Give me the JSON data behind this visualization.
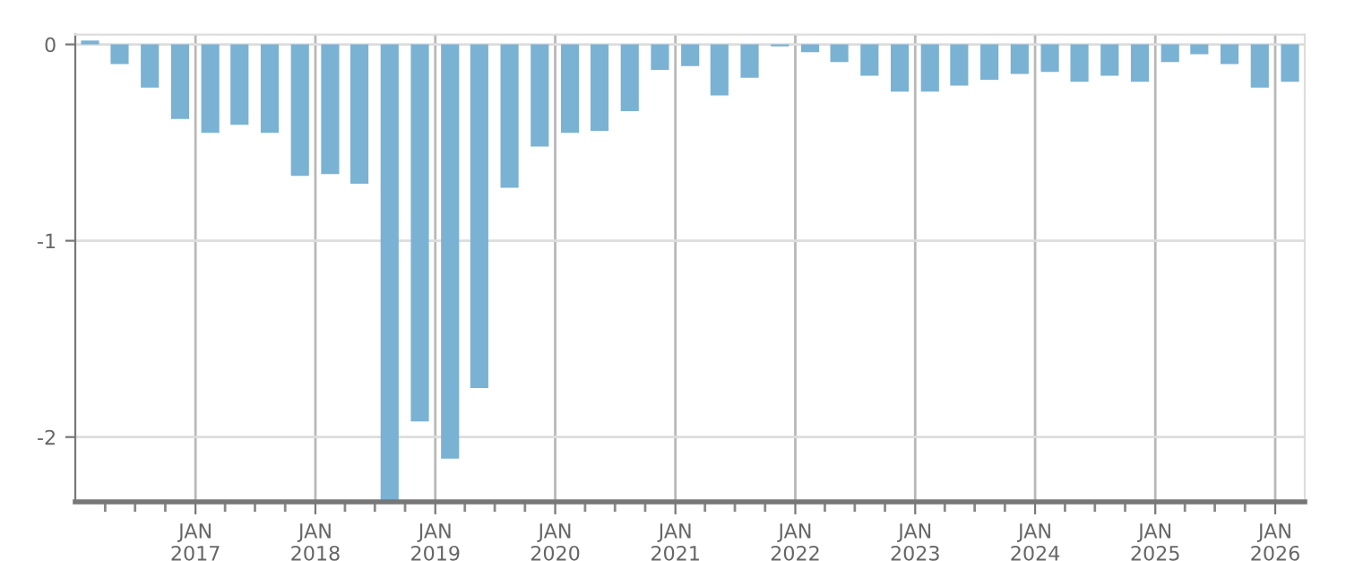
{
  "chart_data": {
    "type": "bar",
    "x": [
      "2016-02-15",
      "2016-05-15",
      "2016-08-15",
      "2016-11-15",
      "2017-02-15",
      "2017-05-15",
      "2017-08-15",
      "2017-11-15",
      "2018-02-15",
      "2018-05-15",
      "2018-08-15",
      "2018-11-15",
      "2019-02-15",
      "2019-05-15",
      "2019-08-15",
      "2019-11-15",
      "2020-02-15",
      "2020-05-15",
      "2020-08-15",
      "2020-11-15",
      "2021-02-15",
      "2021-05-15",
      "2021-08-15",
      "2021-11-15",
      "2022-02-15",
      "2022-05-15",
      "2022-08-15",
      "2022-11-15",
      "2023-02-15",
      "2023-05-15",
      "2023-08-15",
      "2023-11-15",
      "2024-02-15",
      "2024-05-15",
      "2024-08-15",
      "2024-11-15",
      "2025-02-15",
      "2025-05-15",
      "2025-08-15",
      "2025-11-15",
      "2026-02-15"
    ],
    "values": [
      0.02,
      -0.1,
      -0.22,
      -0.38,
      -0.45,
      -0.41,
      -0.45,
      -0.67,
      -0.66,
      -0.71,
      -2.33,
      -1.92,
      -2.11,
      -1.75,
      -0.73,
      -0.52,
      -0.45,
      -0.44,
      -0.34,
      -0.13,
      -0.11,
      -0.26,
      -0.17,
      -0.01,
      -0.04,
      -0.09,
      -0.16,
      -0.24,
      -0.24,
      -0.21,
      -0.18,
      -0.15,
      -0.14,
      -0.19,
      -0.16,
      -0.19,
      -0.09,
      -0.05,
      -0.1,
      -0.22,
      -0.19
    ],
    "color": "#7ab2d4",
    "xlim": [
      "2016-01-01",
      "2026-04-01"
    ],
    "xticks": [
      {
        "value": "2016-04-01",
        "label": null
      },
      {
        "value": "2016-07-01",
        "label": null
      },
      {
        "value": "2016-10-01",
        "label": null
      },
      {
        "value": "2017-01-01",
        "label": "JAN\n2017"
      },
      {
        "value": "2017-04-01",
        "label": null
      },
      {
        "value": "2017-07-01",
        "label": null
      },
      {
        "value": "2017-10-01",
        "label": null
      },
      {
        "value": "2018-01-01",
        "label": "JAN\n2018"
      },
      {
        "value": "2018-04-01",
        "label": null
      },
      {
        "value": "2018-07-01",
        "label": null
      },
      {
        "value": "2018-10-01",
        "label": null
      },
      {
        "value": "2019-01-01",
        "label": "JAN\n2019"
      },
      {
        "value": "2019-04-01",
        "label": null
      },
      {
        "value": "2019-07-01",
        "label": null
      },
      {
        "value": "2019-10-01",
        "label": null
      },
      {
        "value": "2020-01-01",
        "label": "JAN\n2020"
      },
      {
        "value": "2020-04-01",
        "label": null
      },
      {
        "value": "2020-07-01",
        "label": null
      },
      {
        "value": "2020-10-01",
        "label": null
      },
      {
        "value": "2021-01-01",
        "label": "JAN\n2021"
      },
      {
        "value": "2021-04-01",
        "label": null
      },
      {
        "value": "2021-07-01",
        "label": null
      },
      {
        "value": "2021-10-01",
        "label": null
      },
      {
        "value": "2022-01-01",
        "label": "JAN\n2022"
      },
      {
        "value": "2022-04-01",
        "label": null
      },
      {
        "value": "2022-07-01",
        "label": null
      },
      {
        "value": "2022-10-01",
        "label": null
      },
      {
        "value": "2023-01-01",
        "label": "JAN\n2023"
      },
      {
        "value": "2023-04-01",
        "label": null
      },
      {
        "value": "2023-07-01",
        "label": null
      },
      {
        "value": "2023-10-01",
        "label": null
      },
      {
        "value": "2024-01-01",
        "label": "JAN\n2024"
      },
      {
        "value": "2024-04-01",
        "label": null
      },
      {
        "value": "2024-07-01",
        "label": null
      },
      {
        "value": "2024-10-01",
        "label": null
      },
      {
        "value": "2025-01-01",
        "label": "JAN\n2025"
      },
      {
        "value": "2025-04-01",
        "label": null
      },
      {
        "value": "2025-07-01",
        "label": null
      },
      {
        "value": "2025-10-01",
        "label": null
      },
      {
        "value": "2026-01-01",
        "label": "JAN\n2026"
      }
    ],
    "ylim": [
      -2.33,
      0.05
    ],
    "yticks": [
      0,
      -1,
      -2
    ],
    "grid": true,
    "legend": false
  }
}
